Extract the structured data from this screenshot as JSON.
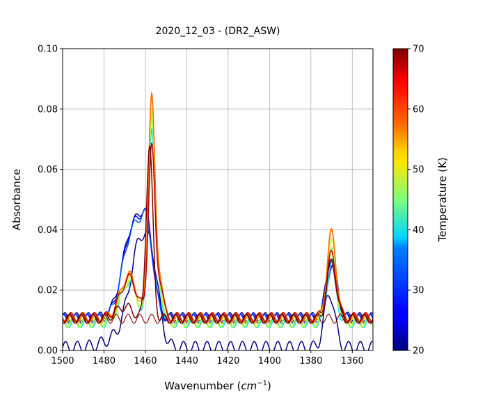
{
  "chart_data": {
    "type": "line",
    "title": "2020_12_03 - (DR2_ASW)",
    "xlabel": "Wavenumber",
    "xlabel_unit_base": "cm",
    "xlabel_unit_exp": "−1",
    "ylabel": "Absorbance",
    "xlim": [
      1500,
      1350
    ],
    "ylim": [
      0.0,
      0.1
    ],
    "x_ticks": [
      1500,
      1480,
      1460,
      1440,
      1420,
      1400,
      1380,
      1360
    ],
    "y_ticks": [
      0.0,
      0.02,
      0.04,
      0.06,
      0.08,
      0.1
    ],
    "x_tick_labels": [
      "1500",
      "1480",
      "1460",
      "1440",
      "1420",
      "1400",
      "1380",
      "1360"
    ],
    "y_tick_labels": [
      "0.00",
      "0.02",
      "0.04",
      "0.06",
      "0.08",
      "0.10"
    ],
    "grid": true,
    "colorbar": {
      "label": "Temperature (K)",
      "colormap": "jet",
      "range": [
        20,
        70
      ],
      "ticks": [
        20,
        30,
        40,
        50,
        60,
        70
      ],
      "tick_labels": [
        "20",
        "30",
        "40",
        "50",
        "60",
        "70"
      ]
    },
    "series": [
      {
        "color": "#00007f",
        "temperature": 20,
        "baseline": 0.001,
        "fringe": 0.002,
        "peaks": [
          [
            1470,
            0.004,
            8
          ],
          [
            1462,
            0.033,
            5
          ],
          [
            1456,
            0.013,
            3
          ],
          [
            1371,
            0.018,
            2.5
          ]
        ]
      },
      {
        "color": "#000098",
        "temperature": 23,
        "baseline": 0.011,
        "fringe": 0.0015,
        "peaks": [
          [
            1466,
            0.03,
            5
          ],
          [
            1459,
            0.022,
            3
          ],
          [
            1370,
            0.02,
            2.5
          ]
        ]
      },
      {
        "color": "#0000e8",
        "temperature": 26,
        "baseline": 0.0105,
        "fringe": 0.0015,
        "peaks": [
          [
            1466,
            0.03,
            5
          ],
          [
            1459,
            0.022,
            3
          ],
          [
            1370,
            0.018,
            2.5
          ]
        ]
      },
      {
        "color": "#0050ff",
        "temperature": 30,
        "baseline": 0.0105,
        "fringe": 0.0015,
        "peaks": [
          [
            1466,
            0.029,
            5
          ],
          [
            1459,
            0.022,
            3
          ],
          [
            1370,
            0.017,
            2.5
          ]
        ]
      },
      {
        "color": "#00d4ff",
        "temperature": 37,
        "baseline": 0.009,
        "fringe": 0.0015,
        "peaks": [
          [
            1468,
            0.014,
            4
          ],
          [
            1457,
            0.065,
            1.6
          ],
          [
            1453,
            0.01,
            1.5
          ],
          [
            1370,
            0.02,
            2.2
          ]
        ]
      },
      {
        "color": "#7dff7a",
        "temperature": 45,
        "baseline": 0.009,
        "fringe": 0.0015,
        "peaks": [
          [
            1468,
            0.014,
            4
          ],
          [
            1457,
            0.068,
            1.6
          ],
          [
            1453,
            0.011,
            1.5
          ],
          [
            1370,
            0.024,
            2.2
          ]
        ]
      },
      {
        "color": "#c4ff33",
        "temperature": 48,
        "baseline": 0.0095,
        "fringe": 0.0015,
        "peaks": [
          [
            1468,
            0.014,
            4
          ],
          [
            1457,
            0.07,
            1.6
          ],
          [
            1453,
            0.012,
            1.5
          ],
          [
            1370,
            0.026,
            2.2
          ]
        ]
      },
      {
        "color": "#ffa700",
        "temperature": 57,
        "baseline": 0.0105,
        "fringe": 0.0015,
        "peaks": [
          [
            1468,
            0.014,
            4
          ],
          [
            1457,
            0.073,
            1.6
          ],
          [
            1453,
            0.013,
            1.5
          ],
          [
            1370,
            0.028,
            2.2
          ]
        ]
      },
      {
        "color": "#ff6a00",
        "temperature": 62,
        "baseline": 0.011,
        "fringe": 0.0015,
        "peaks": [
          [
            1468,
            0.014,
            4
          ],
          [
            1457,
            0.073,
            1.6
          ],
          [
            1453,
            0.013,
            1.5
          ],
          [
            1370,
            0.028,
            2.2
          ]
        ]
      },
      {
        "color": "#b80000",
        "temperature": 67,
        "baseline": 0.011,
        "fringe": 0.0015,
        "peaks": [
          [
            1468,
            0.013,
            4
          ],
          [
            1457,
            0.056,
            1.6
          ],
          [
            1453,
            0.011,
            1.5
          ],
          [
            1370,
            0.021,
            2.2
          ]
        ]
      },
      {
        "color": "#7f0000",
        "temperature": 70,
        "baseline": 0.0105,
        "fringe": 0.0015,
        "peaks": [
          [
            1470,
            0.004,
            4
          ],
          [
            1458,
            0.057,
            1.6
          ],
          [
            1370,
            0.019,
            2.2
          ]
        ]
      },
      {
        "color": "#8b0000",
        "temperature": 70,
        "baseline": 0.0105,
        "fringe": 0.0015,
        "peaks": []
      }
    ]
  }
}
